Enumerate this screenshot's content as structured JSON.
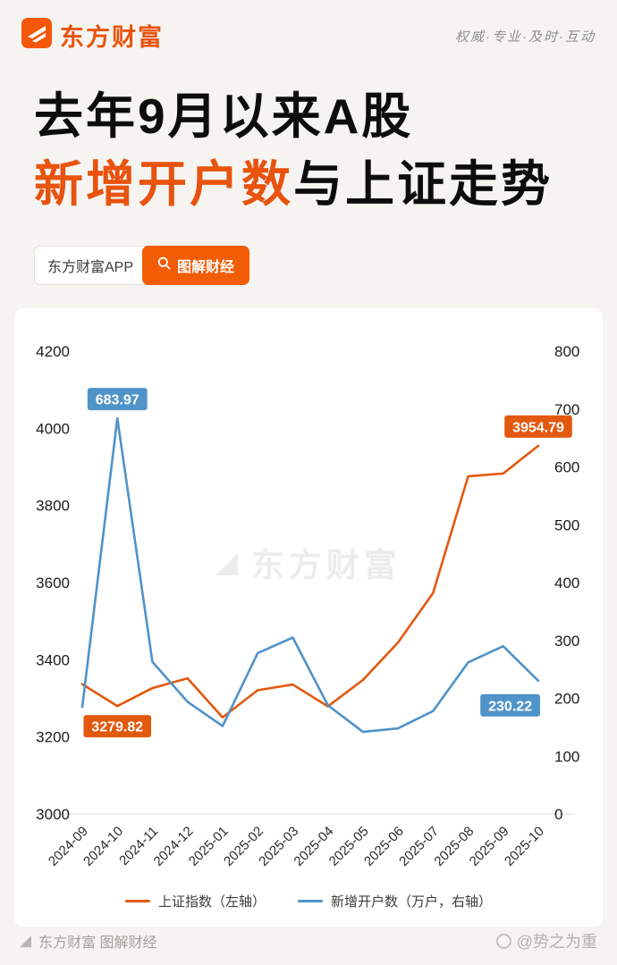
{
  "header": {
    "brand": "东方财富",
    "slogan": "权威·专业·及时·互动"
  },
  "title": {
    "line1": "去年9月以来A股",
    "line2_highlight": "新增开户数",
    "line2_rest": "与上证走势"
  },
  "badges": {
    "app": "东方财富APP",
    "column": "图解财经"
  },
  "colors": {
    "accent_orange": "#e8530e",
    "line_orange": "#e2590e",
    "line_blue": "#4f93c9"
  },
  "chart_data": {
    "type": "line",
    "title": "去年9月以来A股新增开户数与上证走势",
    "categories": [
      "2024-09",
      "2024-10",
      "2024-11",
      "2024-12",
      "2025-01",
      "2025-02",
      "2025-03",
      "2025-04",
      "2025-05",
      "2025-06",
      "2025-07",
      "2025-08",
      "2025-09",
      "2025-10"
    ],
    "series": [
      {
        "name": "上证指数（左轴）",
        "axis": "left",
        "color": "#e2590e",
        "values": [
          3336.5,
          3279.82,
          3326.46,
          3351.76,
          3250.6,
          3320.9,
          3335.75,
          3279.03,
          3347.49,
          3444.43,
          3573.21,
          3875.53,
          3882.78,
          3954.79
        ]
      },
      {
        "name": "新增开户数（万户，右轴）",
        "axis": "right",
        "color": "#4f93c9",
        "values": [
          185,
          683.97,
          263,
          194,
          152,
          278,
          305,
          188,
          142,
          148,
          178,
          262,
          290,
          230.22
        ]
      }
    ],
    "left_axis": {
      "min": 3000,
      "max": 4200,
      "ticks": [
        3000,
        3200,
        3400,
        3600,
        3800,
        4000,
        4200
      ]
    },
    "right_axis": {
      "min": 0,
      "max": 800,
      "ticks": [
        0,
        100,
        200,
        300,
        400,
        500,
        600,
        700,
        800
      ]
    },
    "annotations": [
      {
        "text": "683.97",
        "series": 1,
        "index": 1,
        "placement": "above"
      },
      {
        "text": "3279.82",
        "series": 0,
        "index": 1,
        "placement": "below"
      },
      {
        "text": "3954.79",
        "series": 0,
        "index": 13,
        "placement": "above"
      },
      {
        "text": "230.22",
        "series": 1,
        "index": 13,
        "placement": "below-left"
      }
    ],
    "grid": false,
    "legend_position": "bottom",
    "watermark": "东方财富"
  },
  "footer": {
    "left": "东方财富 图解财经",
    "right": "@势之为重"
  }
}
